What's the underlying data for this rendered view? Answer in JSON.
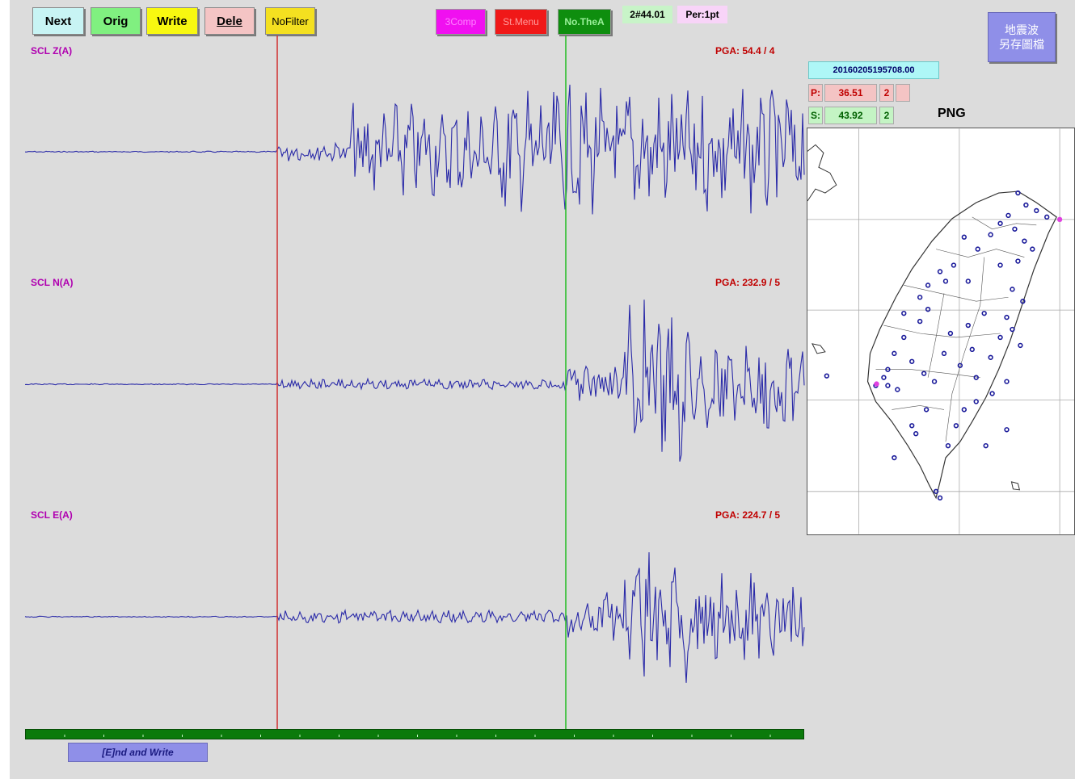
{
  "toolbar": {
    "next": "Next",
    "orig": "Orig",
    "write": "Write",
    "dele": "Dele",
    "nofilter": "NoFilter",
    "threecomp": "3Comp",
    "stmenu": "St.Menu",
    "notheo": "No.TheA",
    "info_left": "2#44.01",
    "info_right": "Per:1pt"
  },
  "save_button": {
    "line1": "地震波",
    "line2": "另存圖檔"
  },
  "channels": [
    {
      "label": "SCL  Z(A)",
      "pga": "PGA: 54.4 / 4"
    },
    {
      "label": "SCL  N(A)",
      "pga": "PGA: 232.9 / 5"
    },
    {
      "label": "SCL  E(A)",
      "pga": "PGA: 224.7 / 5"
    }
  ],
  "event": {
    "datetime": "20160205195708.00",
    "p_label": "P:",
    "p_time": "36.51",
    "p_weight": "2",
    "s_label": "S:",
    "s_time": "43.92",
    "s_weight": "2",
    "network": "PNG"
  },
  "end_write": "[E]nd and Write",
  "colors": {
    "trace": "#2a2aa8",
    "p_pick": "#d03030",
    "s_pick": "#22bb22",
    "timebar": "#0b7a0b",
    "station": "#1a1a9a",
    "selected_station": "#e040e0"
  },
  "icons": {
    "map": "taiwan-station-map"
  }
}
